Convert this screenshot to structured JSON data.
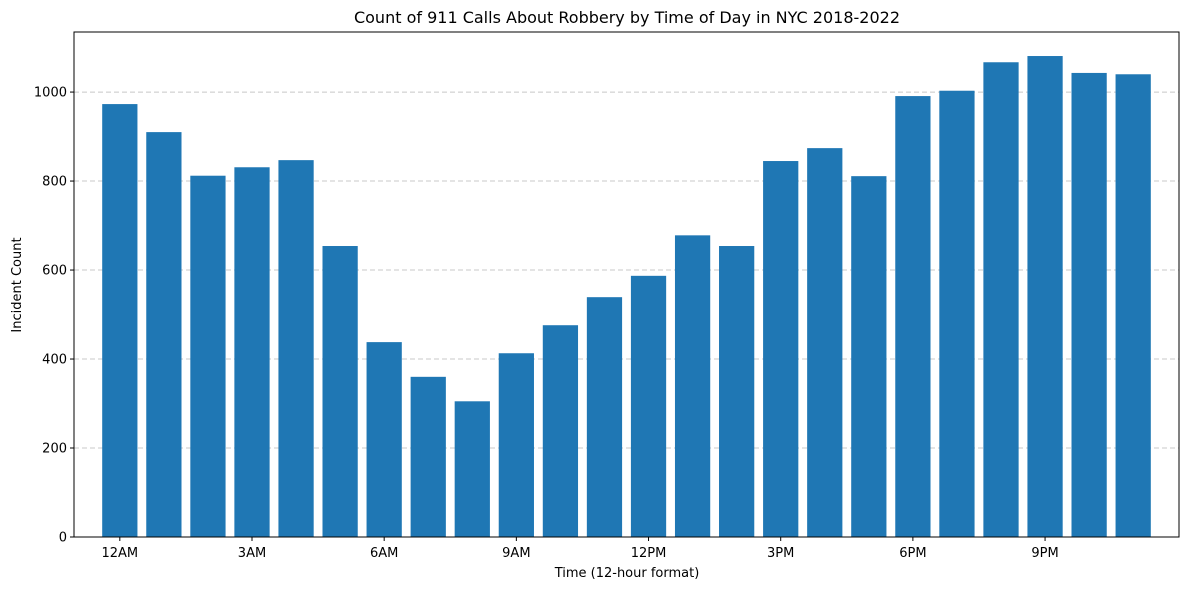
{
  "chart_data": {
    "type": "bar",
    "title": "Count of 911 Calls About Robbery by Time of Day in NYC 2018-2022",
    "xlabel": "Time (12-hour format)",
    "ylabel": "Incident Count",
    "hours": [
      0,
      1,
      2,
      3,
      4,
      5,
      6,
      7,
      8,
      9,
      10,
      11,
      12,
      13,
      14,
      15,
      16,
      17,
      18,
      19,
      20,
      21,
      22,
      23
    ],
    "values": [
      973,
      910,
      812,
      831,
      847,
      654,
      438,
      360,
      305,
      413,
      476,
      539,
      587,
      678,
      654,
      845,
      874,
      811,
      991,
      1003,
      1067,
      1081,
      1043,
      1040
    ],
    "x_ticks": [
      {
        "hour": 0,
        "label": "12AM"
      },
      {
        "hour": 3,
        "label": "3AM"
      },
      {
        "hour": 6,
        "label": "6AM"
      },
      {
        "hour": 9,
        "label": "9AM"
      },
      {
        "hour": 12,
        "label": "12PM"
      },
      {
        "hour": 15,
        "label": "3PM"
      },
      {
        "hour": 18,
        "label": "6PM"
      },
      {
        "hour": 21,
        "label": "9PM"
      }
    ],
    "y_ticks": [
      0,
      200,
      400,
      600,
      800,
      1000
    ],
    "ylim": [
      0,
      1135
    ],
    "xlim": [
      -1.04,
      24.04
    ],
    "grid": "y-dashed",
    "bar_color": "#1f77b4",
    "grid_color": "#c8c8c8"
  }
}
